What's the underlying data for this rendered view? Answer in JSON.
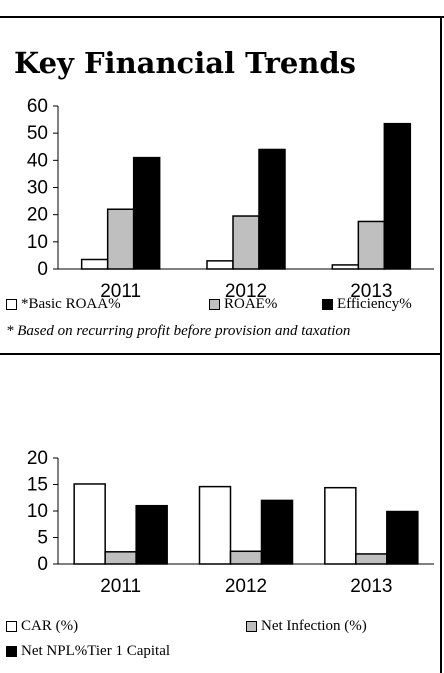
{
  "title": "Key Financial Trends",
  "note": "* Based on recurring profit before provision and taxation",
  "colors": {
    "white_series": "#ffffff",
    "grey_series": "#bfbfbf",
    "black_series": "#000000"
  },
  "chart_data": [
    {
      "type": "bar",
      "categories": [
        "2011",
        "2012",
        "2013"
      ],
      "series": [
        {
          "name": "*Basic ROAA%",
          "values": [
            3.5,
            3,
            1.5
          ]
        },
        {
          "name": "ROAE%",
          "values": [
            22,
            19.5,
            17.5
          ]
        },
        {
          "name": "Efficiency%",
          "values": [
            41,
            44,
            53.5
          ]
        }
      ],
      "ylim": [
        0,
        60
      ],
      "yticks": [
        "0",
        "10",
        "20",
        "30",
        "40",
        "50",
        "60"
      ],
      "legend": "bottom"
    },
    {
      "type": "bar",
      "categories": [
        "2011",
        "2012",
        "2013"
      ],
      "series": [
        {
          "name": "CAR (%)",
          "values": [
            15.1,
            14.6,
            14.4
          ]
        },
        {
          "name": "Net Infection (%)",
          "values": [
            2.3,
            2.4,
            1.9
          ]
        },
        {
          "name": "Net NPL%Tier 1 Capital",
          "values": [
            11,
            12,
            9.9
          ]
        }
      ],
      "ylim": [
        0,
        20
      ],
      "yticks": [
        "0",
        "5",
        "10",
        "15",
        "20"
      ],
      "legend": "bottom"
    }
  ]
}
